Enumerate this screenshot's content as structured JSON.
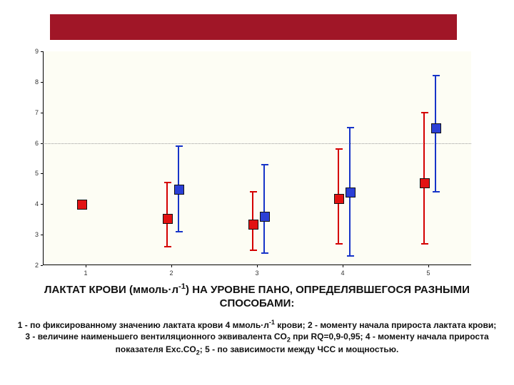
{
  "layout": {
    "top_bar_color": "#a01627",
    "plot_bg": "#fdfdf4",
    "plot_border_left_bottom": "#000000"
  },
  "chart": {
    "type": "errorbar-scatter",
    "ylim": [
      2,
      9
    ],
    "ytick_step": 1,
    "xlim": [
      0.5,
      5.5
    ],
    "xticks": [
      1,
      2,
      3,
      4,
      5
    ],
    "yticks": [
      2,
      3,
      4,
      5,
      6,
      7,
      8,
      9
    ],
    "gridline_y": 6,
    "gridline_color": "#999999",
    "tick_fontsize": 9,
    "series": [
      {
        "name": "blue",
        "color": "#1734c8",
        "marker_fill": "#2b3fd6",
        "marker_size": 12,
        "x_offset": 0.08,
        "points": [
          {
            "x": 2,
            "y": 4.5,
            "low": 3.1,
            "high": 5.9
          },
          {
            "x": 3,
            "y": 3.6,
            "low": 2.4,
            "high": 5.3
          },
          {
            "x": 4,
            "y": 4.4,
            "low": 2.3,
            "high": 6.5
          },
          {
            "x": 5,
            "y": 6.5,
            "low": 4.4,
            "high": 8.2
          }
        ]
      },
      {
        "name": "red",
        "color": "#d40000",
        "marker_fill": "#e21212",
        "marker_size": 12,
        "x_offset": -0.05,
        "points": [
          {
            "x": 1,
            "y": 4.0,
            "low": 3.95,
            "high": 4.05
          },
          {
            "x": 2,
            "y": 3.55,
            "low": 2.6,
            "high": 4.7
          },
          {
            "x": 3,
            "y": 3.35,
            "low": 2.5,
            "high": 4.4
          },
          {
            "x": 4,
            "y": 4.2,
            "low": 2.7,
            "high": 5.8
          },
          {
            "x": 5,
            "y": 4.7,
            "low": 2.7,
            "high": 7.0
          }
        ]
      }
    ]
  },
  "caption": {
    "title_html": "ЛАКТАТ КРОВИ (ммоль·л<sup>-1</sup>) НА УРОВНЕ ПАНО, ОПРЕДЕЛЯВШЕГОСЯ РАЗНЫМИ СПОСОБАМИ:",
    "desc_html": "1 - по фиксированному значению лактата крови 4 ммоль·л<sup>-1</sup> крови; 2 - моменту начала прироста лактата крови; 3 - величине наименьшего вентиляционного эквивалента CO<sub>2</sub> при RQ=0,9-0,95; 4 - моменту начала прироста показателя Exc.CO<sub>2</sub>; 5 - по зависимости между ЧСС и мощностью."
  }
}
